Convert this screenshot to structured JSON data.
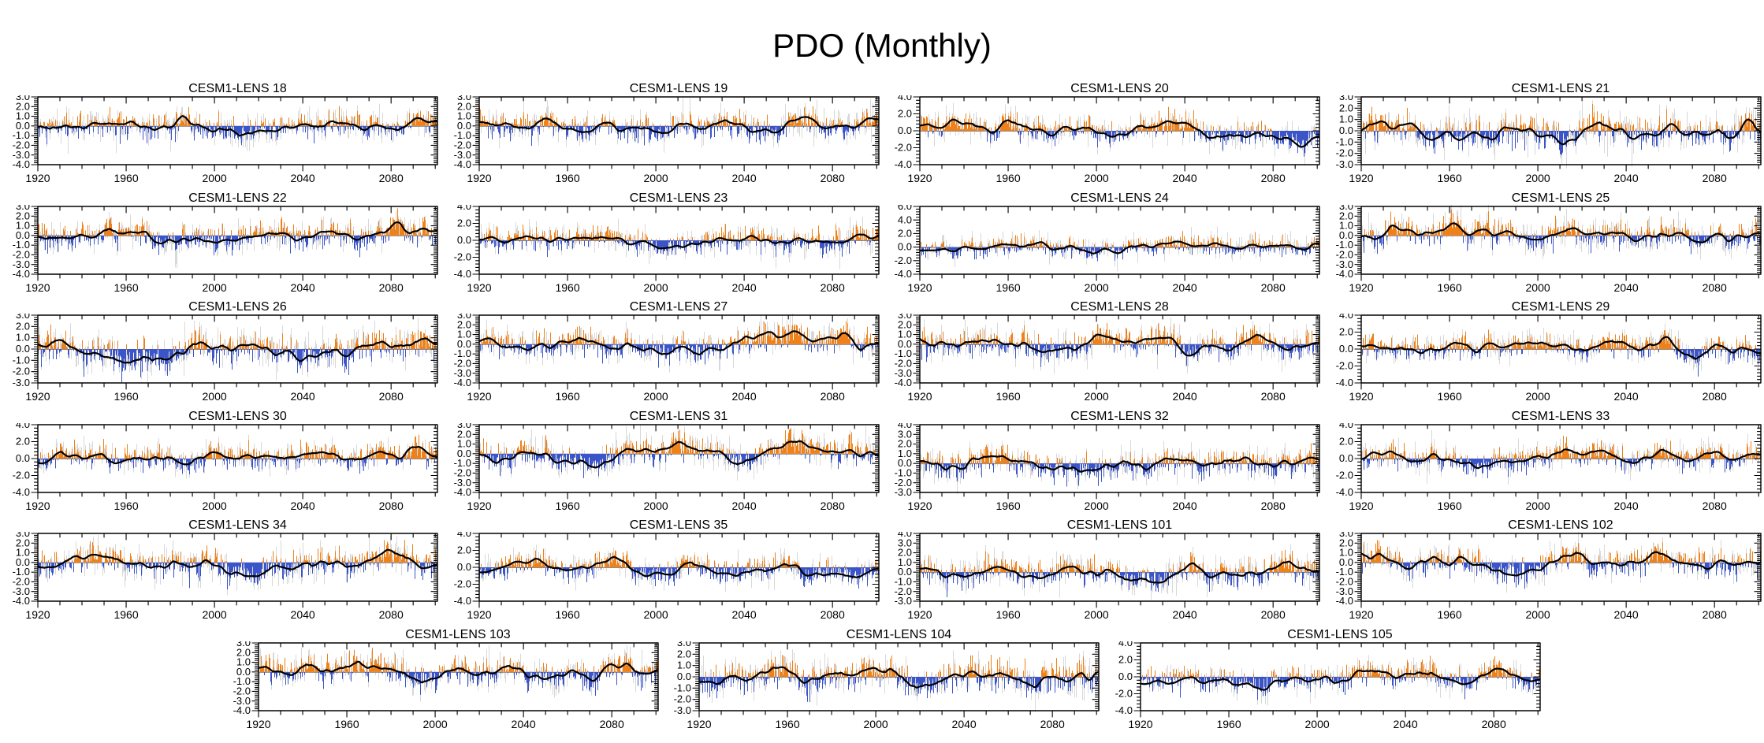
{
  "page": {
    "title": "PDO (Monthly)"
  },
  "chart_data": {
    "type": "bar",
    "title": "PDO (Monthly)",
    "description": "Grid of 23 ensemble-member panels showing the monthly PDO index from 1920 to 2100. Each panel: thin vertical bars (orange = positive, blue = negative) with a light-gray unsmoothed shadow series behind, a thick black low-pass filtered curve, a gray zero line, and a black box frame with outward bottom/left ticks and inward top/right ticks.",
    "x_axis": {
      "start_year": 1920,
      "end_year": 2101,
      "major_tick_labels": [
        "1920",
        "1960",
        "2000",
        "2040",
        "2080"
      ],
      "major_tick_step_years": 40,
      "minor_tick_step_years": 10
    },
    "colors": {
      "positive_bar": "#EE8119",
      "negative_bar": "#3B55C8",
      "shadow_bar": "#D8D8D8",
      "smooth_line": "#000000",
      "zero_line": "#8C8C8C",
      "frame": "#000000"
    },
    "grid": {
      "columns": 4,
      "rows": 6,
      "last_row_panels": 3,
      "last_row_centered": true
    },
    "panels": [
      {
        "title": "CESM1-LENS 18",
        "ymax": 3,
        "ymin": -4,
        "ytick_step": 1,
        "ytick_labels": [
          "3.0",
          "2.0",
          "1.0",
          "0.0",
          "-1.0",
          "-2.0",
          "-3.0",
          "-4.0"
        ]
      },
      {
        "title": "CESM1-LENS 19",
        "ymax": 3,
        "ymin": -4,
        "ytick_step": 1,
        "ytick_labels": [
          "3.0",
          "2.0",
          "1.0",
          "0.0",
          "-1.0",
          "-2.0",
          "-3.0",
          "-4.0"
        ]
      },
      {
        "title": "CESM1-LENS 20",
        "ymax": 4,
        "ymin": -4,
        "ytick_step": 2,
        "ytick_labels": [
          "4.0",
          "2.0",
          "0.0",
          "-2.0",
          "-4.0"
        ]
      },
      {
        "title": "CESM1-LENS 21",
        "ymax": 3,
        "ymin": -3,
        "ytick_step": 1,
        "ytick_labels": [
          "3.0",
          "2.0",
          "1.0",
          "0.0",
          "-1.0",
          "-2.0",
          "-3.0"
        ]
      },
      {
        "title": "CESM1-LENS 22",
        "ymax": 3,
        "ymin": -4,
        "ytick_step": 1,
        "ytick_labels": [
          "3.0",
          "2.0",
          "1.0",
          "0.0",
          "-1.0",
          "-2.0",
          "-3.0",
          "-4.0"
        ]
      },
      {
        "title": "CESM1-LENS 23",
        "ymax": 4,
        "ymin": -4,
        "ytick_step": 2,
        "ytick_labels": [
          "4.0",
          "2.0",
          "0.0",
          "-2.0",
          "-4.0"
        ]
      },
      {
        "title": "CESM1-LENS 24",
        "ymax": 6,
        "ymin": -4,
        "ytick_step": 2,
        "ytick_labels": [
          "6.0",
          "4.0",
          "2.0",
          "0.0",
          "-2.0",
          "-4.0"
        ]
      },
      {
        "title": "CESM1-LENS 25",
        "ymax": 3,
        "ymin": -4,
        "ytick_step": 1,
        "ytick_labels": [
          "3.0",
          "2.0",
          "1.0",
          "0.0",
          "-1.0",
          "-2.0",
          "-3.0",
          "-4.0"
        ]
      },
      {
        "title": "CESM1-LENS 26",
        "ymax": 3,
        "ymin": -3,
        "ytick_step": 1,
        "ytick_labels": [
          "3.0",
          "2.0",
          "1.0",
          "0.0",
          "-1.0",
          "-2.0",
          "-3.0"
        ]
      },
      {
        "title": "CESM1-LENS 27",
        "ymax": 3,
        "ymin": -4,
        "ytick_step": 1,
        "ytick_labels": [
          "3.0",
          "2.0",
          "1.0",
          "0.0",
          "-1.0",
          "-2.0",
          "-3.0",
          "-4.0"
        ]
      },
      {
        "title": "CESM1-LENS 28",
        "ymax": 3,
        "ymin": -4,
        "ytick_step": 1,
        "ytick_labels": [
          "3.0",
          "2.0",
          "1.0",
          "0.0",
          "-1.0",
          "-2.0",
          "-3.0",
          "-4.0"
        ]
      },
      {
        "title": "CESM1-LENS 29",
        "ymax": 4,
        "ymin": -4,
        "ytick_step": 2,
        "ytick_labels": [
          "4.0",
          "2.0",
          "0.0",
          "-2.0",
          "-4.0"
        ]
      },
      {
        "title": "CESM1-LENS 30",
        "ymax": 4,
        "ymin": -4,
        "ytick_step": 2,
        "ytick_labels": [
          "4.0",
          "2.0",
          "0.0",
          "-2.0",
          "-4.0"
        ]
      },
      {
        "title": "CESM1-LENS 31",
        "ymax": 3,
        "ymin": -4,
        "ytick_step": 1,
        "ytick_labels": [
          "3.0",
          "2.0",
          "1.0",
          "0.0",
          "-1.0",
          "-2.0",
          "-3.0",
          "-4.0"
        ]
      },
      {
        "title": "CESM1-LENS 32",
        "ymax": 4,
        "ymin": -3,
        "ytick_step": 1,
        "ytick_labels": [
          "4.0",
          "3.0",
          "2.0",
          "1.0",
          "0.0",
          "-1.0",
          "-2.0",
          "-3.0"
        ]
      },
      {
        "title": "CESM1-LENS 33",
        "ymax": 4,
        "ymin": -4,
        "ytick_step": 2,
        "ytick_labels": [
          "4.0",
          "2.0",
          "0.0",
          "-2.0",
          "-4.0"
        ]
      },
      {
        "title": "CESM1-LENS 34",
        "ymax": 3,
        "ymin": -4,
        "ytick_step": 1,
        "ytick_labels": [
          "3.0",
          "2.0",
          "1.0",
          "0.0",
          "-1.0",
          "-2.0",
          "-3.0",
          "-4.0"
        ]
      },
      {
        "title": "CESM1-LENS 35",
        "ymax": 4,
        "ymin": -4,
        "ytick_step": 2,
        "ytick_labels": [
          "4.0",
          "2.0",
          "0.0",
          "-2.0",
          "-4.0"
        ]
      },
      {
        "title": "CESM1-LENS 101",
        "ymax": 4,
        "ymin": -3,
        "ytick_step": 1,
        "ytick_labels": [
          "4.0",
          "3.0",
          "2.0",
          "1.0",
          "0.0",
          "-1.0",
          "-2.0",
          "-3.0"
        ]
      },
      {
        "title": "CESM1-LENS 102",
        "ymax": 3,
        "ymin": -4,
        "ytick_step": 1,
        "ytick_labels": [
          "3.0",
          "2.0",
          "1.0",
          "0.0",
          "-1.0",
          "-2.0",
          "-3.0",
          "-4.0"
        ]
      },
      {
        "title": "CESM1-LENS 103",
        "ymax": 3,
        "ymin": -4,
        "ytick_step": 1,
        "ytick_labels": [
          "3.0",
          "2.0",
          "1.0",
          "0.0",
          "-1.0",
          "-2.0",
          "-3.0",
          "-4.0"
        ]
      },
      {
        "title": "CESM1-LENS 104",
        "ymax": 3,
        "ymin": -3,
        "ytick_step": 1,
        "ytick_labels": [
          "3.0",
          "2.0",
          "1.0",
          "0.0",
          "-1.0",
          "-2.0",
          "-3.0"
        ]
      },
      {
        "title": "CESM1-LENS 105",
        "ymax": 4,
        "ymin": -4,
        "ytick_step": 2,
        "ytick_labels": [
          "4.0",
          "2.0",
          "0.0",
          "-2.0",
          "-4.0"
        ]
      }
    ]
  }
}
